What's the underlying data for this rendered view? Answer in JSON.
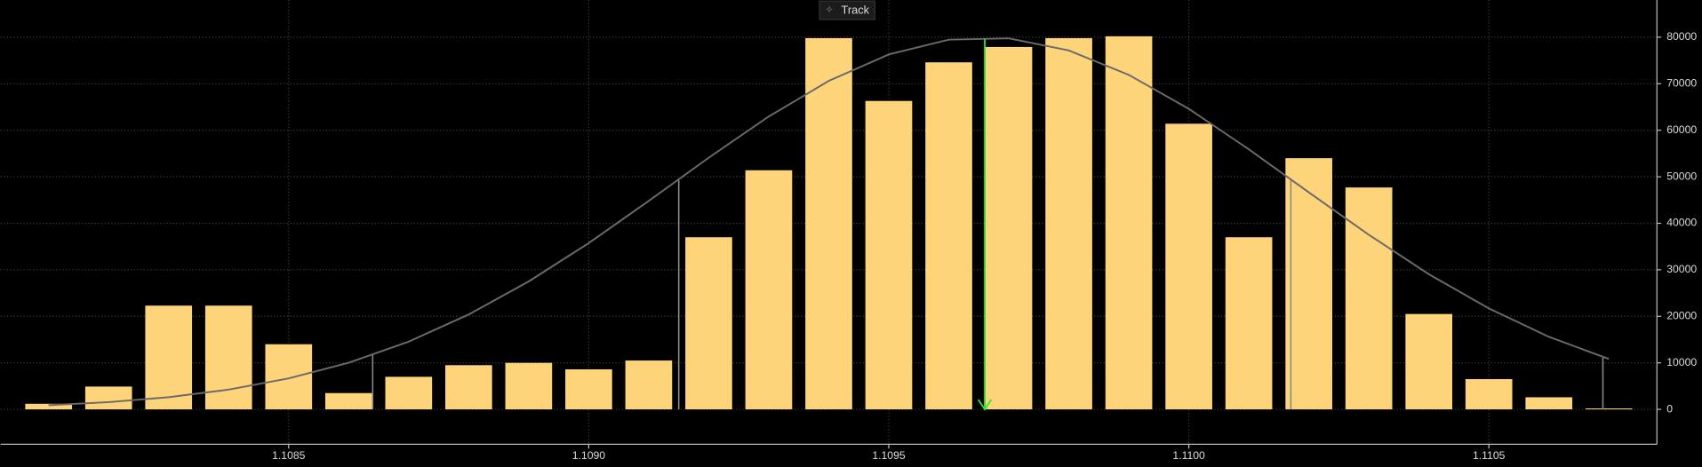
{
  "chart_data": {
    "type": "bar",
    "button": "Track",
    "x": [
      1.1081,
      1.1082,
      1.1083,
      1.1084,
      1.1085,
      1.1086,
      1.1087,
      1.1088,
      1.1089,
      1.109,
      1.1091,
      1.1092,
      1.1093,
      1.1094,
      1.1095,
      1.1096,
      1.1097,
      1.1098,
      1.1099,
      1.11,
      1.1101,
      1.1102,
      1.1103,
      1.1104,
      1.1105,
      1.1106,
      1.1107
    ],
    "values": [
      1200,
      4900,
      22300,
      22300,
      14000,
      3500,
      7000,
      9500,
      10000,
      8600,
      10500,
      37000,
      51400,
      79800,
      66300,
      74600,
      77900,
      79800,
      80200,
      61400,
      37000,
      54000,
      47700,
      20500,
      6500,
      2600,
      200
    ],
    "color": "#fdd47a",
    "curve": {
      "color": "#6a6a6a",
      "x": [
        1.1081,
        1.1082,
        1.1083,
        1.1084,
        1.1085,
        1.1086,
        1.1087,
        1.1088,
        1.1089,
        1.109,
        1.1091,
        1.1092,
        1.1093,
        1.1094,
        1.1095,
        1.1096,
        1.1097,
        1.1098,
        1.1099,
        1.11,
        1.1101,
        1.1102,
        1.1103,
        1.1104,
        1.1105,
        1.1106,
        1.1107
      ],
      "values": [
        889,
        1552,
        2618,
        4250,
        6650,
        10020,
        14560,
        20400,
        27500,
        35750,
        44800,
        54100,
        62950,
        70600,
        76300,
        79470,
        79760,
        77150,
        71900,
        64600,
        55900,
        46650,
        37520,
        29050,
        21700,
        15600,
        10830
      ]
    },
    "sigma_lines": [
      1.10864,
      1.10915,
      1.11017,
      1.11069
    ],
    "sigma_color": "#8a8a8a",
    "mean_line": 1.10966,
    "mean_color": "#2ee82e",
    "xlim": [
      1.10802,
      1.11078
    ],
    "xticks": [
      1.1085,
      {
        "value": 1.109,
        "label": "1.1090"
      },
      1.1095,
      {
        "value": 1.11,
        "label": "1.1100"
      },
      1.1105
    ],
    "ylim": [
      -7500,
      88000
    ],
    "yticks": [
      0,
      10000,
      20000,
      30000,
      40000,
      50000,
      60000,
      70000,
      80000
    ],
    "grid": true
  }
}
